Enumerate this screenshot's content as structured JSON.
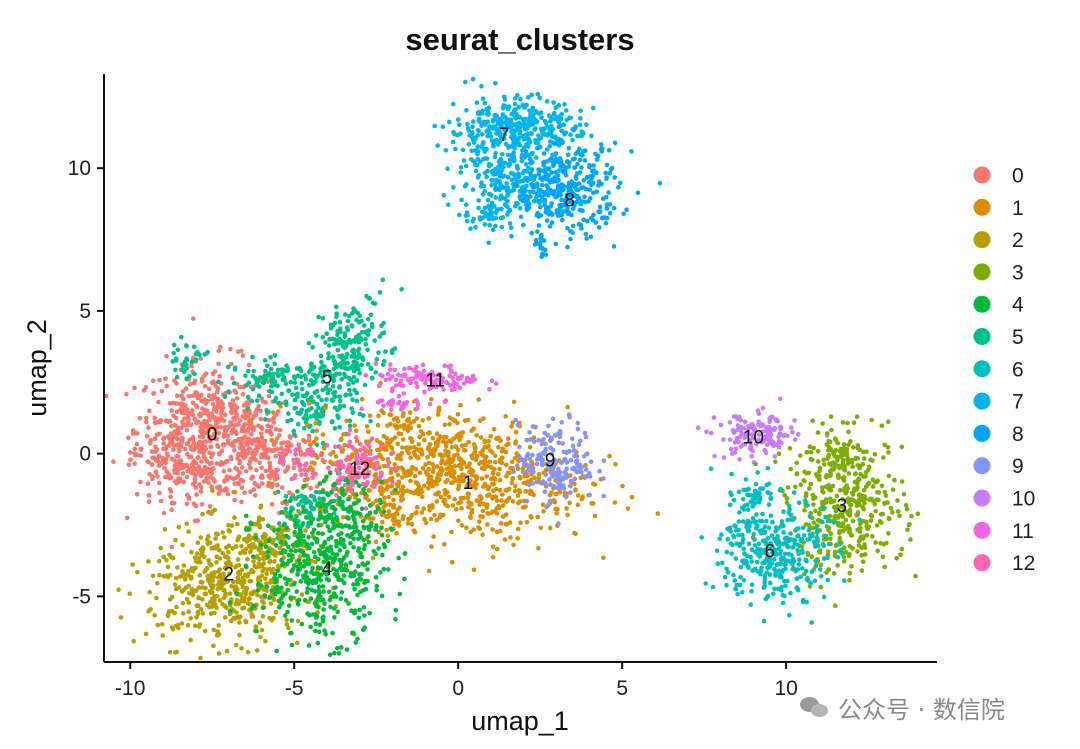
{
  "chart_data": {
    "type": "scatter",
    "title": "seurat_clusters",
    "xlabel": "umap_1",
    "ylabel": "umap_2",
    "xlim": [
      -10.8,
      14.6
    ],
    "ylim": [
      -7.3,
      13.3
    ],
    "xticks": [
      -10,
      -5,
      0,
      5,
      10
    ],
    "yticks": [
      -5,
      0,
      5,
      10
    ],
    "grid": false,
    "legend": "right",
    "series": [
      {
        "name": "0",
        "color": "#F8766D",
        "label_pos": [
          -7.5,
          0.7
        ]
      },
      {
        "name": "1",
        "color": "#DE8C00",
        "label_pos": [
          0.3,
          -1.0
        ]
      },
      {
        "name": "2",
        "color": "#B79F00",
        "label_pos": [
          -7.0,
          -4.2
        ]
      },
      {
        "name": "3",
        "color": "#7CAE00",
        "label_pos": [
          11.7,
          -1.8
        ]
      },
      {
        "name": "4",
        "color": "#00BA38",
        "label_pos": [
          -4.0,
          -4.0
        ]
      },
      {
        "name": "5",
        "color": "#00C08B",
        "label_pos": [
          -4.0,
          2.7
        ]
      },
      {
        "name": "6",
        "color": "#00BFC4",
        "label_pos": [
          9.5,
          -3.4
        ]
      },
      {
        "name": "7",
        "color": "#00B4F0",
        "label_pos": [
          1.4,
          11.2
        ]
      },
      {
        "name": "8",
        "color": "#00A5FF",
        "label_pos": [
          3.4,
          8.9
        ]
      },
      {
        "name": "9",
        "color": "#8494FF",
        "label_pos": [
          2.8,
          -0.2
        ]
      },
      {
        "name": "10",
        "color": "#C77CFF",
        "label_pos": [
          9.0,
          0.6
        ]
      },
      {
        "name": "11",
        "color": "#F564E3",
        "label_pos": [
          -0.7,
          2.6
        ]
      },
      {
        "name": "12",
        "color": "#FF64B0",
        "label_pos": [
          -3.0,
          -0.5
        ]
      }
    ]
  },
  "watermark": {
    "text": "公众号 · 数信院",
    "icon": "wechat-icon"
  }
}
